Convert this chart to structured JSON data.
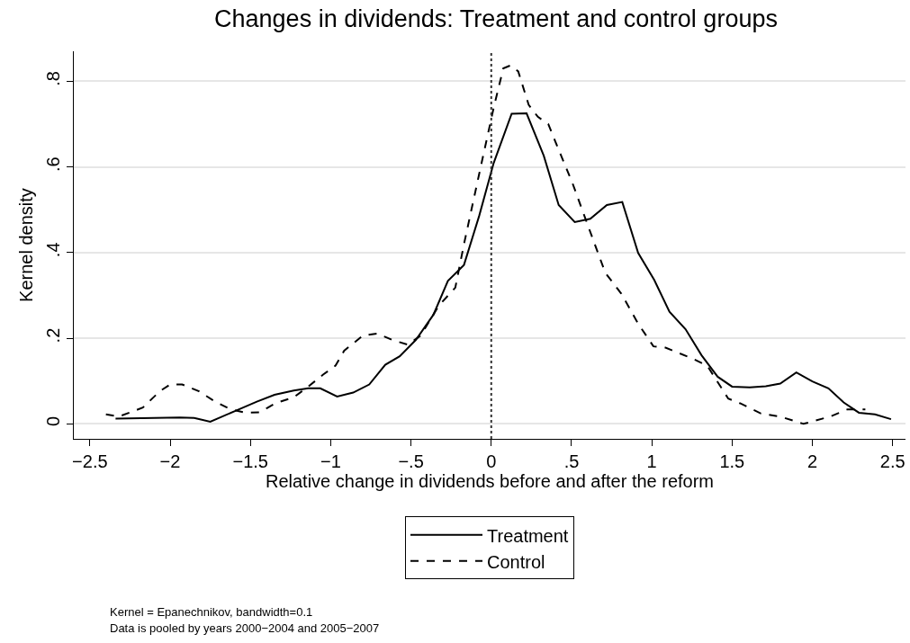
{
  "chart_data": {
    "type": "line",
    "title": "Changes in dividends: Treatment and control groups",
    "xlabel": "Relative change in dividends before and after the reform",
    "ylabel": "Kernel density",
    "xlim": [
      -2.6,
      2.58
    ],
    "ylim": [
      -0.035,
      0.87
    ],
    "xticks": [
      {
        "value": -2.5,
        "label": "−2.5"
      },
      {
        "value": -2,
        "label": "−2"
      },
      {
        "value": -1.5,
        "label": "−1.5"
      },
      {
        "value": -1,
        "label": "−1"
      },
      {
        "value": -0.5,
        "label": "−.5"
      },
      0,
      {
        "value": 0.5,
        "label": ".5"
      },
      1,
      {
        "value": 1.5,
        "label": "1.5"
      },
      2,
      {
        "value": 2.5,
        "label": "2.5"
      }
    ],
    "yticks": [
      0,
      {
        "value": 0.2,
        "label": ".2"
      },
      {
        "value": 0.4,
        "label": ".4"
      },
      {
        "value": 0.6,
        "label": ".6"
      },
      {
        "value": 0.8,
        "label": ".8"
      }
    ],
    "grid": "y",
    "legend": "bottom",
    "marker": "none",
    "ref_lines": [
      {
        "axis": "x",
        "value": 0,
        "color": "#333333",
        "line_style": "dotted"
      }
    ],
    "series": [
      {
        "name": "Treatment",
        "color": "#000000",
        "line_style": "solid",
        "x": [
          -2.34,
          -1.94,
          -1.85,
          -1.75,
          -1.59,
          -1.46,
          -1.35,
          -1.23,
          -1.14,
          -1.065,
          -0.96,
          -0.86,
          -0.76,
          -0.66,
          -0.57,
          -0.47,
          -0.36,
          -0.27,
          -0.17,
          -0.075,
          0.015,
          0.127,
          0.22,
          0.327,
          0.42,
          0.52,
          0.617,
          0.72,
          0.816,
          0.915,
          1.015,
          1.11,
          1.21,
          1.31,
          1.41,
          1.5,
          1.61,
          1.71,
          1.8,
          1.9,
          2.0,
          2.1,
          2.195,
          2.29,
          2.39,
          2.49
        ],
        "values": [
          0.012,
          0.015,
          0.014,
          0.005,
          0.031,
          0.052,
          0.068,
          0.078,
          0.083,
          0.083,
          0.064,
          0.073,
          0.092,
          0.138,
          0.158,
          0.196,
          0.255,
          0.334,
          0.371,
          0.486,
          0.609,
          0.724,
          0.725,
          0.626,
          0.511,
          0.471,
          0.479,
          0.511,
          0.518,
          0.399,
          0.336,
          0.262,
          0.221,
          0.16,
          0.11,
          0.087,
          0.085,
          0.088,
          0.094,
          0.12,
          0.099,
          0.083,
          0.05,
          0.026,
          0.022,
          0.011
        ]
      },
      {
        "name": "Control",
        "color": "#000000",
        "line_style": "dashed",
        "x": [
          -2.4,
          -2.32,
          -2.17,
          -2.065,
          -2.0,
          -1.925,
          -1.82,
          -1.72,
          -1.625,
          -1.53,
          -1.44,
          -1.345,
          -1.23,
          -1.14,
          -1.047,
          -0.97,
          -0.916,
          -0.8,
          -0.71,
          -0.617,
          -0.52,
          -0.44,
          -0.327,
          -0.224,
          -0.168,
          -0.075,
          0.015,
          0.075,
          0.12,
          0.168,
          0.233,
          0.29,
          0.355,
          0.42,
          0.505,
          0.607,
          0.71,
          0.81,
          0.915,
          1.01,
          1.085,
          1.25,
          1.345,
          1.476,
          1.55,
          1.68,
          1.8,
          1.945,
          2.11,
          2.22,
          2.33
        ],
        "values": [
          0.022,
          0.017,
          0.038,
          0.076,
          0.092,
          0.092,
          0.076,
          0.052,
          0.034,
          0.026,
          0.027,
          0.048,
          0.062,
          0.087,
          0.115,
          0.136,
          0.171,
          0.206,
          0.211,
          0.196,
          0.185,
          0.206,
          0.276,
          0.318,
          0.423,
          0.584,
          0.738,
          0.83,
          0.837,
          0.823,
          0.745,
          0.717,
          0.7,
          0.64,
          0.563,
          0.458,
          0.353,
          0.304,
          0.234,
          0.181,
          0.178,
          0.153,
          0.136,
          0.059,
          0.048,
          0.024,
          0.017,
          0,
          0.017,
          0.034,
          0.034
        ]
      }
    ],
    "annotations": [
      "Kernel = Epanechnikov, bandwidth=0.1",
      "Data is pooled by years 2000−2004 and 2005−2007"
    ]
  }
}
